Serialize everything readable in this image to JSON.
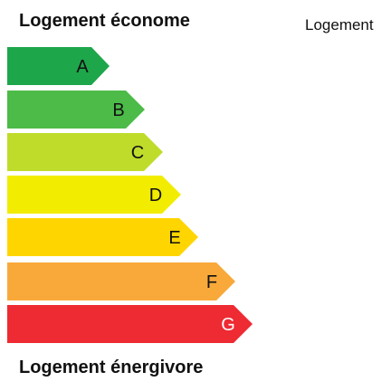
{
  "header": {
    "title": "Logement économe",
    "right_label": "Logement"
  },
  "footer": {
    "title": "Logement énergivore"
  },
  "classes": [
    {
      "letter": "A",
      "color": "#1ea64b"
    },
    {
      "letter": "B",
      "color": "#4cbb48"
    },
    {
      "letter": "C",
      "color": "#bfdc2b"
    },
    {
      "letter": "D",
      "color": "#f1ec00"
    },
    {
      "letter": "E",
      "color": "#ffd500"
    },
    {
      "letter": "F",
      "color": "#f8a93a"
    },
    {
      "letter": "G",
      "color": "#ee2a32"
    }
  ]
}
